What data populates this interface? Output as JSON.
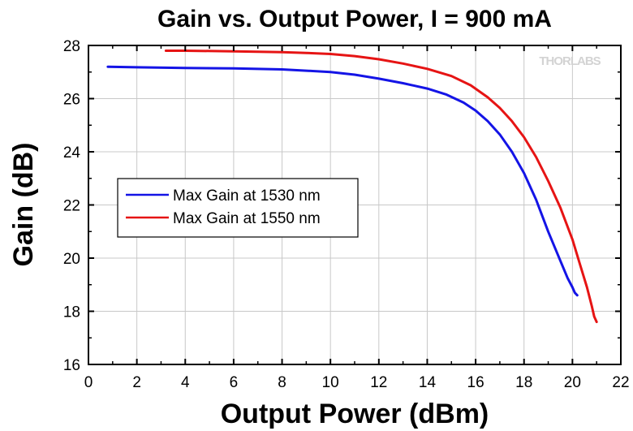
{
  "colors": {
    "series_1530": "#1414e6",
    "series_1550": "#e61414",
    "grid": "#c8c8c8",
    "axis": "#000000"
  },
  "watermark": "THORLABS",
  "chart_data": {
    "type": "line",
    "title": "Gain vs. Output Power, I = 900 mA",
    "xlabel": "Output Power (dBm)",
    "ylabel": "Gain (dB)",
    "xlim": [
      0,
      22
    ],
    "ylim": [
      16,
      28
    ],
    "xticks": [
      0,
      2,
      4,
      6,
      8,
      10,
      12,
      14,
      16,
      18,
      20,
      22
    ],
    "yticks": [
      16,
      18,
      20,
      22,
      24,
      26,
      28
    ],
    "grid": true,
    "legend_position": "middle-left",
    "series": [
      {
        "name": "Max Gain at 1530 nm",
        "x": [
          0.8,
          2,
          4,
          6,
          8,
          9,
          10,
          11,
          12,
          13,
          14,
          14.8,
          15.5,
          16,
          16.5,
          17,
          17.5,
          18,
          18.5,
          19,
          19.5,
          19.8,
          20,
          20.1,
          20.2
        ],
        "y": [
          27.2,
          27.18,
          27.15,
          27.14,
          27.1,
          27.05,
          27.0,
          26.9,
          26.75,
          26.58,
          26.38,
          26.15,
          25.85,
          25.55,
          25.15,
          24.65,
          24.0,
          23.2,
          22.2,
          21.0,
          19.9,
          19.25,
          18.9,
          18.7,
          18.6
        ]
      },
      {
        "name": "Max Gain at 1550 nm",
        "x": [
          3.2,
          4,
          6,
          8,
          9,
          10,
          11,
          12,
          13,
          14,
          15,
          15.8,
          16.5,
          17,
          17.5,
          18,
          18.5,
          19,
          19.5,
          20,
          20.3,
          20.6,
          20.8,
          20.9,
          21.0
        ],
        "y": [
          27.8,
          27.8,
          27.78,
          27.75,
          27.72,
          27.68,
          27.6,
          27.48,
          27.32,
          27.12,
          26.85,
          26.5,
          26.05,
          25.65,
          25.15,
          24.55,
          23.8,
          22.9,
          21.9,
          20.7,
          19.8,
          18.9,
          18.2,
          17.8,
          17.6
        ]
      }
    ]
  }
}
